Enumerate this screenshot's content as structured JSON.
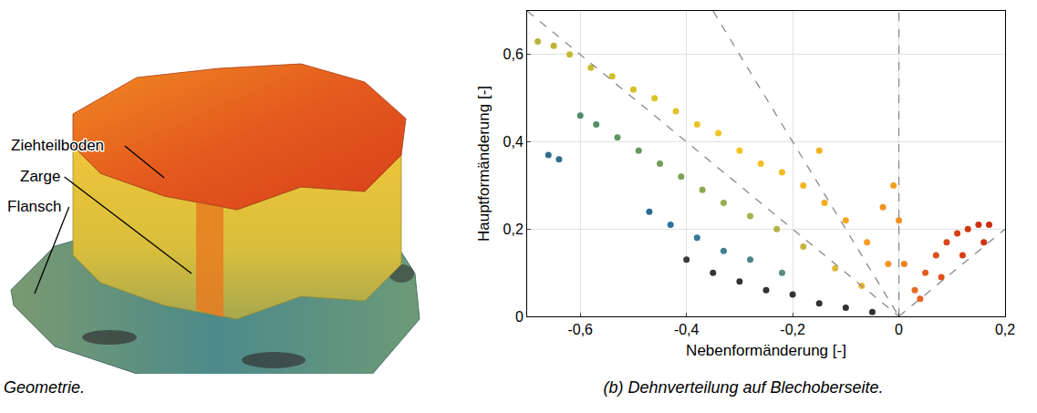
{
  "panel_a": {
    "caption": "Geometrie.",
    "labels": [
      "Ziehteilboden",
      "Zarge",
      "Flansch"
    ]
  },
  "chart_data": {
    "type": "scatter",
    "caption": "(b) Dehnverteilung auf Blechoberseite.",
    "x_label": "Nebenformänderung [-]",
    "y_label": "Hauptformänderung [-]",
    "xlim": [
      -0.7,
      0.2
    ],
    "ylim": [
      0,
      0.7
    ],
    "xticks": [
      {
        "value": -0.6,
        "label": "-0,6"
      },
      {
        "value": -0.4,
        "label": "-0,4"
      },
      {
        "value": -0.2,
        "label": "-0,2"
      },
      0,
      {
        "value": 0.2,
        "label": "0,2"
      }
    ],
    "yticks": [
      0,
      {
        "value": 0.2,
        "label": "0,2"
      },
      {
        "value": 0.4,
        "label": "0,4"
      },
      {
        "value": 0.6,
        "label": "0,6"
      }
    ],
    "grid": true,
    "marker": "circle",
    "x": [
      -0.68,
      -0.65,
      -0.62,
      -0.58,
      -0.54,
      -0.5,
      -0.46,
      -0.42,
      -0.38,
      -0.34,
      -0.3,
      -0.26,
      -0.22,
      -0.18,
      -0.15,
      -0.14,
      -0.1,
      -0.06,
      -0.03,
      -0.02,
      -0.6,
      -0.57,
      -0.53,
      -0.49,
      -0.45,
      -0.41,
      -0.37,
      -0.33,
      -0.28,
      -0.23,
      -0.18,
      -0.12,
      -0.07,
      -0.66,
      -0.64,
      -0.47,
      -0.43,
      -0.38,
      -0.33,
      -0.28,
      -0.22,
      -0.4,
      -0.35,
      -0.3,
      -0.25,
      -0.2,
      -0.15,
      -0.1,
      -0.05,
      0,
      0.01,
      -0.01,
      0.03,
      0.05,
      0.07,
      0.09,
      0.11,
      0.13,
      0.15,
      0.17,
      0.16,
      0.12,
      0.08,
      0.04
    ],
    "values": [
      0.63,
      0.62,
      0.6,
      0.57,
      0.55,
      0.52,
      0.5,
      0.47,
      0.44,
      0.42,
      0.38,
      0.35,
      0.33,
      0.3,
      0.38,
      0.26,
      0.22,
      0.17,
      0.25,
      0.12,
      0.46,
      0.44,
      0.41,
      0.38,
      0.35,
      0.32,
      0.29,
      0.26,
      0.23,
      0.2,
      0.16,
      0.11,
      0.07,
      0.37,
      0.36,
      0.24,
      0.21,
      0.18,
      0.15,
      0.13,
      0.1,
      0.13,
      0.1,
      0.08,
      0.06,
      0.05,
      0.03,
      0.02,
      0.01,
      0.22,
      0.12,
      0.3,
      0.06,
      0.1,
      0.14,
      0.17,
      0.19,
      0.2,
      0.21,
      0.21,
      0.17,
      0.14,
      0.09,
      0.04
    ],
    "colors": [
      "#b7b43a",
      "#bdb535",
      "#c4b832",
      "#cbbb30",
      "#d2bd2e",
      "#d8bf2c",
      "#ddc12a",
      "#e2c228",
      "#e8c326",
      "#edc424",
      "#f0c322",
      "#f2bf22",
      "#f4ba22",
      "#f5b422",
      "#f4b020",
      "#f6ad22",
      "#f7a524",
      "#f89c24",
      "#f59020",
      "#f89426",
      "#4d8a6a",
      "#558f66",
      "#5d9462",
      "#67985e",
      "#729d5a",
      "#7ea256",
      "#8aa752",
      "#97ac4e",
      "#a5b14a",
      "#b3b446",
      "#c5b840",
      "#dcbc38",
      "#ecb830",
      "#2f6f8a",
      "#2f6f8a",
      "#2a6a98",
      "#2d72a0",
      "#35789a",
      "#3f7e92",
      "#4b848a",
      "#5a8a80",
      "#3a3a3a",
      "#363636",
      "#333333",
      "#333333",
      "#333333",
      "#333333",
      "#333333",
      "#333333",
      "#f39020",
      "#f08020",
      "#f2a020",
      "#e86a20",
      "#e45a1c",
      "#e0501a",
      "#db4618",
      "#d63e16",
      "#d23614",
      "#cf3012",
      "#cc2c10",
      "#cf3212",
      "#d83e16",
      "#e0501a",
      "#e86020"
    ],
    "reference_lines": [
      {
        "x": [
          -0.7,
          0
        ],
        "values": [
          0.7,
          0
        ]
      },
      {
        "x": [
          -0.35,
          0
        ],
        "values": [
          0.7,
          0
        ]
      },
      {
        "x": [
          0,
          0
        ],
        "values": [
          0,
          0.7
        ]
      },
      {
        "x": [
          0,
          0.2
        ],
        "values": [
          0,
          0.2
        ]
      }
    ],
    "line_style": "dash"
  }
}
